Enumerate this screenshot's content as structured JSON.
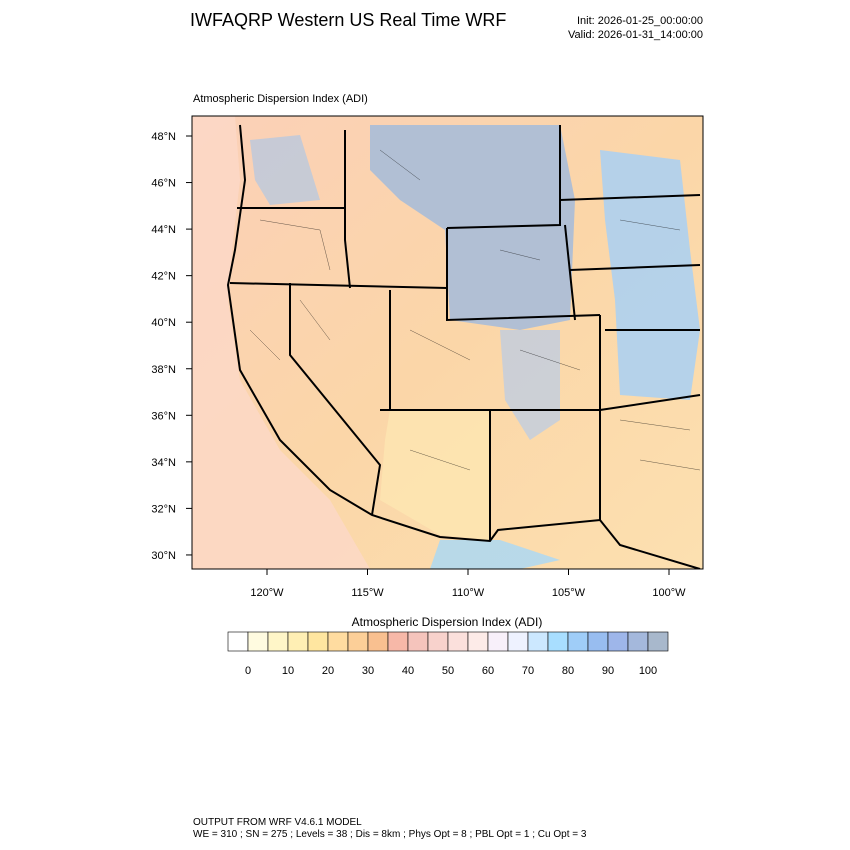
{
  "header": {
    "title": "IWFAQRP Western US Real Time WRF",
    "init": "Init: 2026-01-25_00:00:00",
    "valid": "Valid: 2026-01-31_14:00:00"
  },
  "map": {
    "title": "Atmospheric Dispersion Index   (ADI)",
    "lat_labels": [
      "48°N",
      "46°N",
      "44°N",
      "42°N",
      "40°N",
      "38°N",
      "36°N",
      "34°N",
      "32°N",
      "30°N"
    ],
    "lon_labels": [
      "120°W",
      "115°W",
      "110°W",
      "105°W",
      "100°W"
    ]
  },
  "colorbar": {
    "title": "Atmospheric Dispersion Index  (ADI)",
    "colors": [
      "#ffffff",
      "#fffbe0",
      "#fff6c8",
      "#ffefb4",
      "#ffe6a0",
      "#ffdca0",
      "#fccf98",
      "#f9c090",
      "#f7b8a8",
      "#f5c4bc",
      "#f8d2cc",
      "#fbe0dc",
      "#fdebe8",
      "#f8f0fa",
      "#eef2ff",
      "#cce8ff",
      "#a8deff",
      "#9fcdf8",
      "#98bdf0",
      "#9eb6ea",
      "#a4b8dc",
      "#a8b8cc"
    ],
    "ticks": [
      0,
      10,
      20,
      30,
      40,
      50,
      60,
      70,
      80,
      90,
      100
    ]
  },
  "footer": {
    "line1": "OUTPUT FROM WRF V4.6.1 MODEL",
    "line2": "WE = 310 ; SN = 275 ; Levels = 38 ; Dis = 8km ; Phys Opt = 8 ; PBL Opt = 1 ; Cu Opt = 3"
  }
}
